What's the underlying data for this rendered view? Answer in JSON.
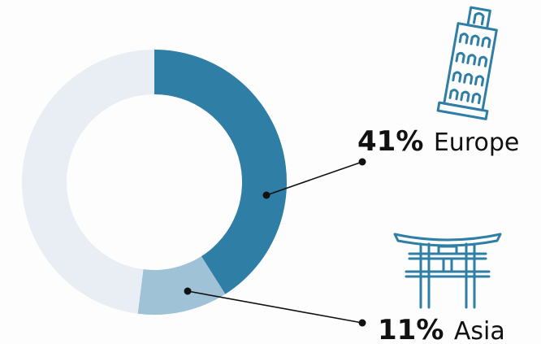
{
  "chart_data": {
    "type": "pie",
    "style": "donut",
    "slices": [
      {
        "label": "Europe",
        "value": 41,
        "value_label": "41%",
        "color": "#2e7ea6",
        "icon": "leaning-tower-icon"
      },
      {
        "label": "Asia",
        "value": 11,
        "value_label": "11%",
        "color": "#9fc2d6",
        "icon": "torii-gate-icon"
      }
    ],
    "remainder": {
      "value": 48,
      "color": "#e8eef3"
    },
    "start_angle": "top",
    "direction": "clockwise"
  },
  "colors": {
    "icon_color": "#2e7ea6",
    "leader_line": "#111111",
    "text": "#111111"
  }
}
